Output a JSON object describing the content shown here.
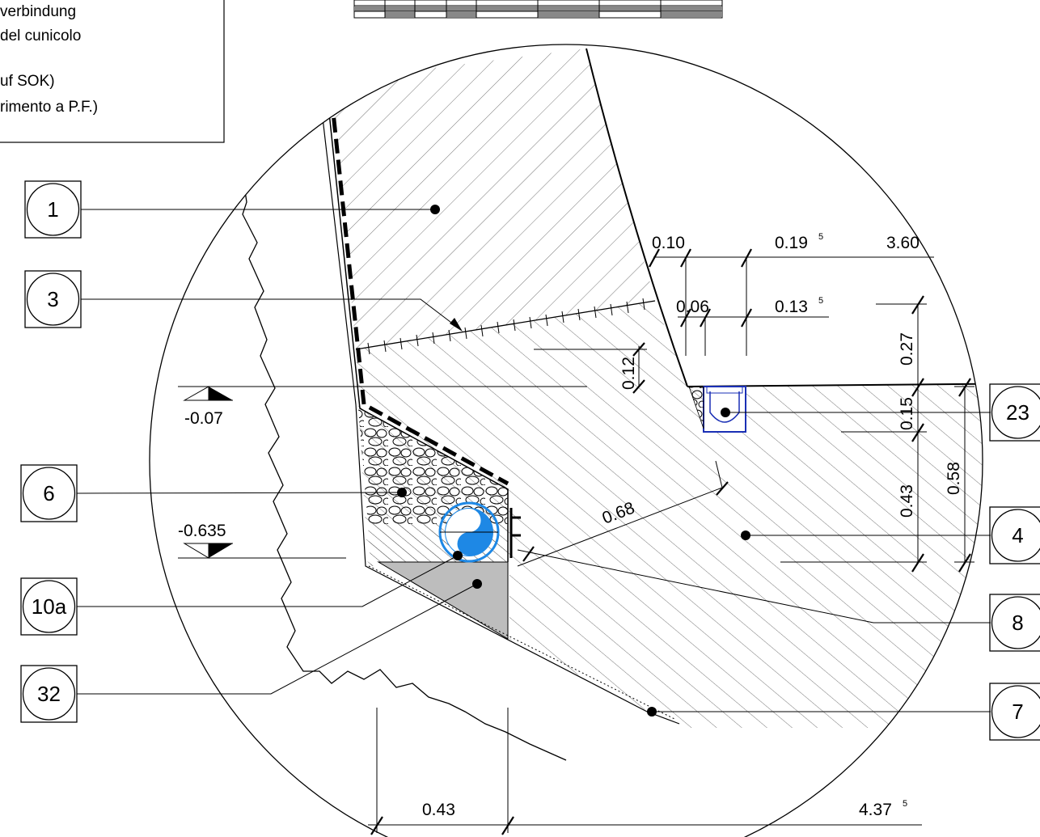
{
  "legend": {
    "line1": "verbindung",
    "line2": "del cunicolo",
    "line3": "uf SOK)",
    "line4": "rimento a P.F.)"
  },
  "tags": [
    {
      "label": "1"
    },
    {
      "label": "3"
    },
    {
      "label": "6"
    },
    {
      "label": "10a"
    },
    {
      "label": "32"
    },
    {
      "label": "23"
    },
    {
      "label": "4"
    },
    {
      "label": "8"
    },
    {
      "label": "7"
    }
  ],
  "dimensions": {
    "d010": "0.10",
    "d019_main": "0.19",
    "d019_sup": "5",
    "d360": "3.60",
    "d006": "0.06",
    "d013_main": "0.13",
    "d013_sup": "5",
    "d012": "0.12",
    "d027": "0.27",
    "d015": "0.15",
    "d043v": "0.43",
    "d058": "0.58",
    "d068": "0.68",
    "d043h": "0.43",
    "d437_main": "4.37",
    "d437_sup": "5"
  },
  "levels": {
    "upper": "-0.07",
    "lower": "-0.635"
  },
  "colors": {
    "line": "#000000",
    "hatch": "#555555",
    "gravel_fill": "#bdbdbd",
    "pipe_blue": "#1e88e5",
    "channel_blue": "#1a2fb5"
  }
}
